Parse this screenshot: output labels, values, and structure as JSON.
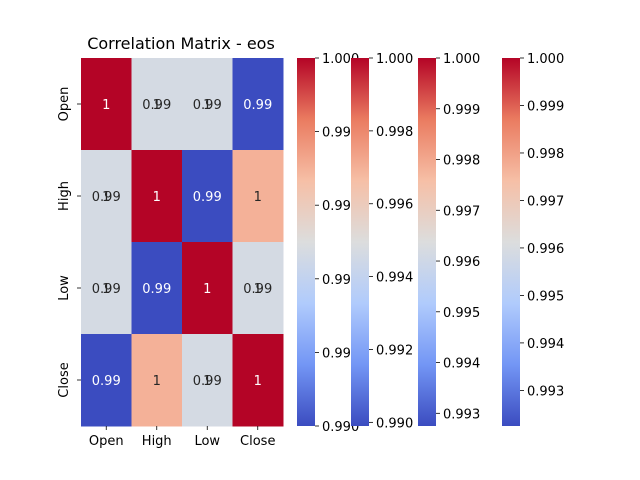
{
  "chart_data": {
    "type": "heatmap",
    "title": "Correlation Matrix - eos",
    "xlabel": "",
    "ylabel": "",
    "columns": [
      "Open",
      "High",
      "Low",
      "Close"
    ],
    "rows": [
      "Open",
      "High",
      "Low",
      "Close"
    ],
    "values": [
      [
        1.0,
        0.9947,
        0.9947,
        0.99
      ],
      [
        0.9947,
        1.0,
        0.99,
        0.997
      ],
      [
        0.9947,
        0.99,
        1.0,
        0.9947
      ],
      [
        0.99,
        0.997,
        0.9947,
        1.0
      ]
    ],
    "cell_labels": [
      [
        [
          "1"
        ],
        [
          "0.99",
          "1"
        ],
        [
          "0.99",
          "1"
        ],
        [
          "0.99"
        ]
      ],
      [
        [
          "0.99",
          "1"
        ],
        [
          "1"
        ],
        [
          "0.99"
        ],
        [
          "1"
        ]
      ],
      [
        [
          "0.99",
          "1"
        ],
        [
          "0.99"
        ],
        [
          "1"
        ],
        [
          "0.99",
          "1"
        ]
      ],
      [
        [
          "0.99"
        ],
        [
          "1"
        ],
        [
          "0.99",
          "1"
        ],
        [
          "1"
        ]
      ]
    ],
    "colormap": "coolwarm",
    "colormap_stops": [
      "#3b4cc0",
      "#7396f5",
      "#b0cbfc",
      "#dcdddd",
      "#f6bfa6",
      "#ea7b60",
      "#b40426"
    ],
    "colorbars": [
      {
        "min": 0.99,
        "max": 1.0,
        "ticks": [
          "0.990",
          "0.992",
          "0.994",
          "0.996",
          "0.998",
          "1.000"
        ],
        "tick_values": [
          0.99,
          0.992,
          0.994,
          0.996,
          0.998,
          1.0
        ]
      },
      {
        "min": 0.9899,
        "max": 1.0,
        "ticks": [
          "0.990",
          "0.992",
          "0.994",
          "0.996",
          "0.998",
          "1.000"
        ],
        "tick_values": [
          0.99,
          0.992,
          0.994,
          0.996,
          0.998,
          1.0
        ]
      },
      {
        "min": 0.99275,
        "max": 1.0,
        "ticks": [
          "0.993",
          "0.994",
          "0.995",
          "0.996",
          "0.997",
          "0.998",
          "0.999",
          "1.000"
        ],
        "tick_values": [
          0.993,
          0.994,
          0.995,
          0.996,
          0.997,
          0.998,
          0.999,
          1.0
        ]
      },
      {
        "min": 0.99225,
        "max": 1.0,
        "ticks": [
          "0.993",
          "0.994",
          "0.995",
          "0.996",
          "0.997",
          "0.998",
          "0.999",
          "1.000"
        ],
        "tick_values": [
          0.993,
          0.994,
          0.995,
          0.996,
          0.997,
          0.998,
          0.999,
          1.0
        ]
      }
    ]
  }
}
